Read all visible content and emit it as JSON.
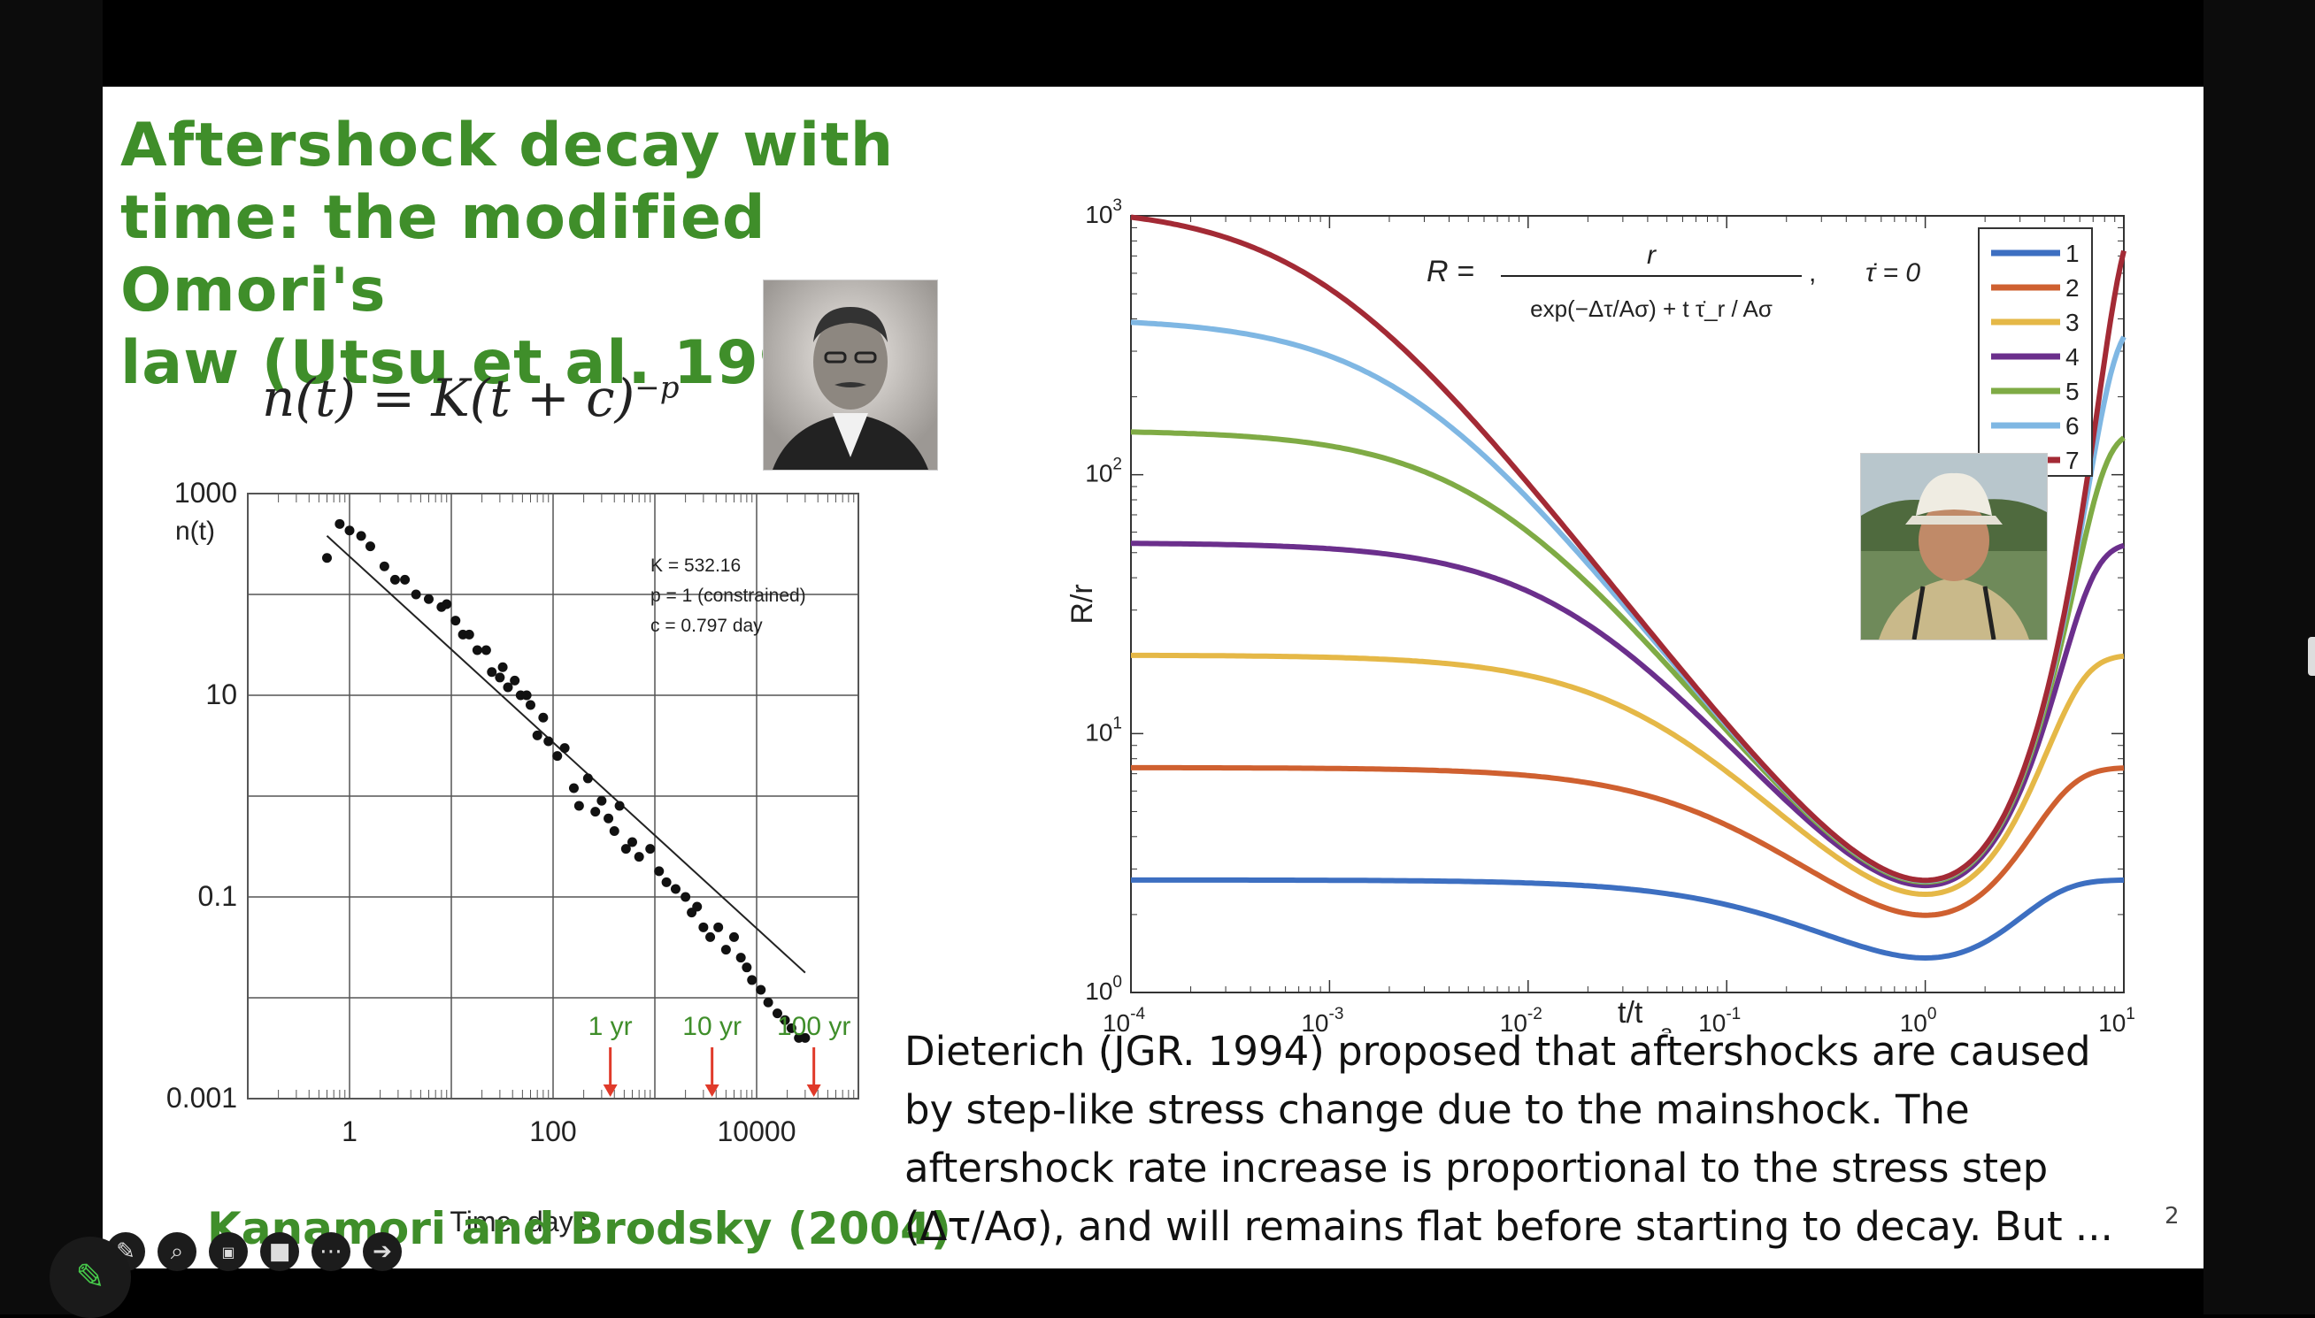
{
  "slide": {
    "title": "Aftershock decay with\ntime: the modified Omori's\nlaw (Utsu et al. 1995)",
    "omori_formula": {
      "lhs": "n(t) = K(t + c)",
      "exp": "−p"
    },
    "left_credit": "Kanamori and Brodsky (2004)",
    "description": [
      "Dieterich (JGR. 1994) proposed that aftershocks are caused",
      "by step-like stress change due to the mainshock. The",
      "aftershock rate increase is proportional to the stress step",
      "(Δτ/Aσ), and will remains flat before starting to decay. But ..."
    ],
    "page_number": "2"
  },
  "chart_data": [
    {
      "type": "scatter",
      "ylabel": "n(t)",
      "xlabel": "Time, days",
      "x_scale": "log",
      "y_scale": "log",
      "xlim": [
        0.1,
        100000
      ],
      "ylim": [
        0.001,
        1000
      ],
      "xticks": [
        "1",
        "100",
        "10000"
      ],
      "yticks": [
        "1000",
        "10",
        "0.1",
        "0.001"
      ],
      "grid": true,
      "legend_text": [
        "K = 532.16",
        "p = 1 (constrained)",
        "c = 0.797 day"
      ],
      "markers": [
        {
          "label": "1 yr",
          "x": 365
        },
        {
          "label": "10 yr",
          "x": 3650
        },
        {
          "label": "100 yr",
          "x": 36500
        }
      ],
      "fit": {
        "K": 532.16,
        "p": 1,
        "c": 0.797
      },
      "points": [
        [
          0.6,
          230
        ],
        [
          0.8,
          500
        ],
        [
          1.0,
          430
        ],
        [
          1.3,
          380
        ],
        [
          1.6,
          300
        ],
        [
          2.2,
          190
        ],
        [
          2.8,
          140
        ],
        [
          3.5,
          140
        ],
        [
          4.5,
          100
        ],
        [
          6,
          90
        ],
        [
          8,
          75
        ],
        [
          9,
          80
        ],
        [
          11,
          55
        ],
        [
          13,
          40
        ],
        [
          15,
          40
        ],
        [
          18,
          28
        ],
        [
          22,
          28
        ],
        [
          25,
          17
        ],
        [
          30,
          15
        ],
        [
          32,
          19
        ],
        [
          36,
          12
        ],
        [
          42,
          14
        ],
        [
          48,
          10
        ],
        [
          55,
          10
        ],
        [
          60,
          8
        ],
        [
          70,
          4
        ],
        [
          80,
          6
        ],
        [
          90,
          3.5
        ],
        [
          110,
          2.5
        ],
        [
          130,
          3
        ],
        [
          160,
          1.2
        ],
        [
          180,
          0.8
        ],
        [
          220,
          1.5
        ],
        [
          260,
          0.7
        ],
        [
          300,
          0.9
        ],
        [
          350,
          0.6
        ],
        [
          400,
          0.45
        ],
        [
          450,
          0.8
        ],
        [
          520,
          0.3
        ],
        [
          600,
          0.35
        ],
        [
          700,
          0.25
        ],
        [
          900,
          0.3
        ],
        [
          1100,
          0.18
        ],
        [
          1300,
          0.14
        ],
        [
          1600,
          0.12
        ],
        [
          2000,
          0.1
        ],
        [
          2300,
          0.07
        ],
        [
          2600,
          0.08
        ],
        [
          3000,
          0.05
        ],
        [
          3500,
          0.04
        ],
        [
          4200,
          0.05
        ],
        [
          5000,
          0.03
        ],
        [
          6000,
          0.04
        ],
        [
          7000,
          0.025
        ],
        [
          8000,
          0.02
        ],
        [
          9000,
          0.015
        ],
        [
          11000,
          0.012
        ],
        [
          13000,
          0.009
        ],
        [
          16000,
          0.007
        ],
        [
          19000,
          0.006
        ],
        [
          22000,
          0.005
        ],
        [
          26000,
          0.004
        ],
        [
          30000,
          0.004
        ]
      ]
    },
    {
      "type": "line",
      "ylabel": "R/r",
      "xlabel": "t/t",
      "xlabel_sub": "a",
      "x_scale": "log",
      "y_scale": "log",
      "xlim": [
        0.0001,
        10
      ],
      "ylim": [
        1,
        1000
      ],
      "xticks": [
        {
          "base": "10",
          "exp": "-4"
        },
        {
          "base": "10",
          "exp": "-3"
        },
        {
          "base": "10",
          "exp": "-2"
        },
        {
          "base": "10",
          "exp": "-1"
        },
        {
          "base": "10",
          "exp": "0"
        },
        {
          "base": "10",
          "exp": "1"
        }
      ],
      "yticks": [
        {
          "base": "10",
          "exp": "0"
        },
        {
          "base": "10",
          "exp": "1"
        },
        {
          "base": "10",
          "exp": "2"
        },
        {
          "base": "10",
          "exp": "3"
        }
      ],
      "grid": false,
      "legend_position": "top-right",
      "equation": {
        "lhs": "R =",
        "num": "r",
        "den": "exp(−Δτ/Aσ) + t τ̇_r / Aσ",
        "cond": "τ̇ = 0"
      },
      "series": [
        {
          "name": "1",
          "color": "#3d6fc1",
          "plateau": 2.72
        },
        {
          "name": "2",
          "color": "#cf6030",
          "plateau": 7.39
        },
        {
          "name": "3",
          "color": "#e5b847",
          "plateau": 20.1
        },
        {
          "name": "4",
          "color": "#6b2f8c",
          "plateau": 54.6
        },
        {
          "name": "5",
          "color": "#7fab45",
          "plateau": 148.4
        },
        {
          "name": "6",
          "color": "#7fb7e3",
          "plateau": 403.4
        },
        {
          "name": "7",
          "color": "#a32a35",
          "plateau": 1096.6
        }
      ]
    }
  ]
}
